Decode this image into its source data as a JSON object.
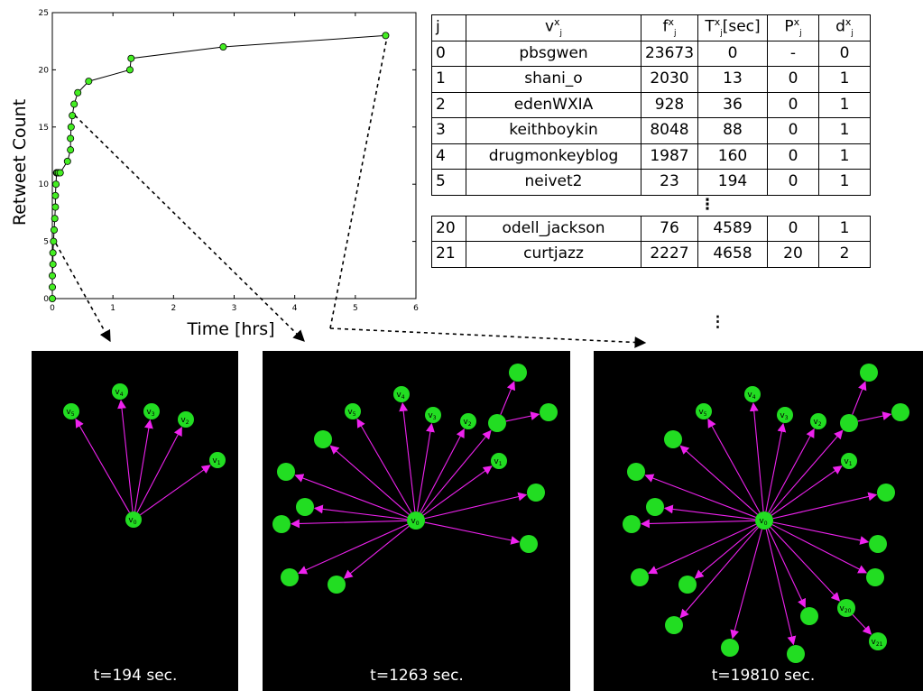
{
  "chart_data": {
    "type": "line",
    "title": "",
    "xlabel": "Time [hrs]",
    "ylabel": "Retweet Count",
    "xlim": [
      0,
      6
    ],
    "ylim": [
      0,
      25
    ],
    "xticks": [
      "0",
      "1",
      "2",
      "3",
      "4",
      "5",
      "6"
    ],
    "yticks": [
      "0",
      "5",
      "10",
      "15",
      "20",
      "25"
    ],
    "marker_color": "#44ee22",
    "series": [
      {
        "x": [
          0.0,
          0.0,
          0.0,
          0.01,
          0.01,
          0.02,
          0.03,
          0.04,
          0.05,
          0.05,
          0.06,
          0.07,
          0.08,
          0.1,
          0.13,
          0.25,
          0.3,
          0.3,
          0.31,
          0.33,
          0.36,
          0.42,
          0.6,
          1.28,
          1.3,
          2.82,
          5.5
        ],
        "y": [
          0,
          1,
          2,
          3,
          4,
          5,
          6,
          7,
          8,
          9,
          10,
          11,
          11,
          11,
          11,
          12,
          13,
          14,
          15,
          16,
          17,
          18,
          19,
          20,
          21,
          22,
          23
        ]
      }
    ]
  },
  "table": {
    "headers": {
      "j": "j",
      "v_main": "v",
      "v_sup": "x",
      "v_sub": "j",
      "f_main": "f",
      "f_sup": "x",
      "f_sub": "j",
      "t_main": "T",
      "t_sup": "x",
      "t_sub": "j",
      "t_suffix": "[sec]",
      "p_main": "P",
      "p_sup": "x",
      "p_sub": "j",
      "d_main": "d",
      "d_sup": "x",
      "d_sub": "j"
    },
    "rows_top": [
      {
        "j": "0",
        "v": "pbsgwen",
        "f": "23673",
        "t": "0",
        "p": "-",
        "d": "0"
      },
      {
        "j": "1",
        "v": "shani_o",
        "f": "2030",
        "t": "13",
        "p": "0",
        "d": "1"
      },
      {
        "j": "2",
        "v": "edenWXIA",
        "f": "928",
        "t": "36",
        "p": "0",
        "d": "1"
      },
      {
        "j": "3",
        "v": "keithboykin",
        "f": "8048",
        "t": "88",
        "p": "0",
        "d": "1"
      },
      {
        "j": "4",
        "v": "drugmonkeyblog",
        "f": "1987",
        "t": "160",
        "p": "0",
        "d": "1"
      },
      {
        "j": "5",
        "v": "neivet2",
        "f": "23",
        "t": "194",
        "p": "0",
        "d": "1"
      }
    ],
    "ellipsis": "⋮",
    "rows_bottom": [
      {
        "j": "20",
        "v": "odell_jackson",
        "f": "76",
        "t": "4589",
        "p": "0",
        "d": "1"
      },
      {
        "j": "21",
        "v": "curtjazz",
        "f": "2227",
        "t": "4658",
        "p": "20",
        "d": "2"
      }
    ]
  },
  "snapshots": {
    "labels": [
      "t=194 sec.",
      "t=1263 sec.",
      "t=19810 sec."
    ],
    "node_color": "#22dd22",
    "edge_color": "#ee22ee",
    "node_labels": {
      "v0": "v0",
      "v1": "v1",
      "v2": "v2",
      "v3": "v3",
      "v4": "v4",
      "v5": "v5",
      "v20": "v20",
      "v21": "v21"
    }
  }
}
